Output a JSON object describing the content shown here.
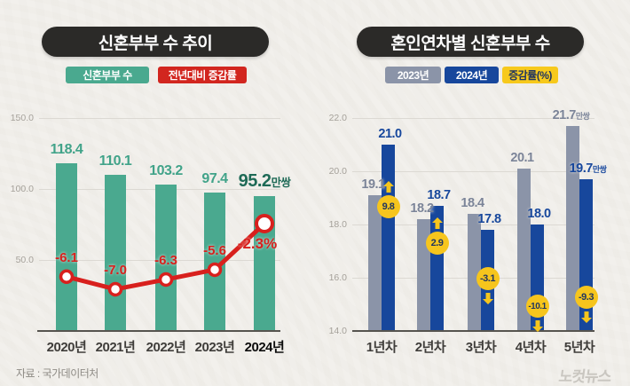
{
  "left_panel": {
    "title": "신혼부부 수 추이",
    "legend": [
      {
        "label": "신혼부부 수",
        "color": "#4aa98f"
      },
      {
        "label": "전년대비 증감률",
        "color": "#d2261f"
      }
    ]
  },
  "right_panel": {
    "title": "혼인연차별 신혼부부 수",
    "legend": [
      {
        "label": "2023년",
        "color": "#8b94a8",
        "text_color": "#ffffff"
      },
      {
        "label": "2024년",
        "color": "#17479c",
        "text_color": "#ffffff"
      },
      {
        "label": "증감률(%)",
        "color": "#f7c91c",
        "text_color": "#21355f"
      }
    ]
  },
  "chart_data": [
    {
      "type": "bar",
      "title": "신혼부부 수 추이",
      "categories": [
        "2020년",
        "2021년",
        "2022년",
        "2023년",
        "2024년"
      ],
      "yticks": [
        150,
        100,
        50
      ],
      "ytick_labels": [
        "150.0",
        "100.0",
        "50.0"
      ],
      "ylim": [
        0,
        158
      ],
      "grid": true,
      "unit_suffix": "만쌍",
      "series": [
        {
          "name": "신혼부부 수",
          "type": "bar",
          "color": "#4aa98f",
          "values": [
            118.4,
            110.1,
            103.2,
            97.4,
            95.2
          ],
          "labels": [
            "118.4",
            "110.1",
            "103.2",
            "97.4",
            "95.2"
          ],
          "label_color": "#41a389",
          "final_label_color": "#1e6a56"
        },
        {
          "name": "전년대비 증감률",
          "type": "line",
          "color": "#d8201d",
          "values": [
            -6.1,
            -7.0,
            -6.3,
            -5.6,
            -2.3
          ],
          "labels": [
            "-6.1",
            "-7.0",
            "-6.3",
            "-5.6",
            "-2.3%"
          ],
          "unit": "%"
        }
      ]
    },
    {
      "type": "bar",
      "title": "혼인연차별 신혼부부 수",
      "categories": [
        "1년차",
        "2년차",
        "3년차",
        "4년차",
        "5년차"
      ],
      "yticks": [
        22,
        20,
        18,
        16,
        14
      ],
      "ytick_labels": [
        "22.0",
        "20.0",
        "18.0",
        "16.0",
        "14.0"
      ],
      "ylim": [
        14,
        22.5
      ],
      "grid": true,
      "unit_suffix": "만쌍",
      "series": [
        {
          "name": "2023년",
          "type": "bar",
          "color": "#8b94a8",
          "values": [
            19.1,
            18.2,
            18.4,
            20.1,
            21.7
          ],
          "labels": [
            "19.1",
            "18.2",
            "18.4",
            "20.1",
            "21.7"
          ],
          "label_color": "#7b8498"
        },
        {
          "name": "2024년",
          "type": "bar",
          "color": "#17479c",
          "values": [
            21.0,
            18.7,
            17.8,
            18.0,
            19.7
          ],
          "labels": [
            "21.0",
            "18.7",
            "17.8",
            "18.0",
            "19.7"
          ],
          "label_color": "#17479c"
        },
        {
          "name": "증감률(%)",
          "type": "change-bubble",
          "color": "#f6c51d",
          "values": [
            9.8,
            2.9,
            -3.1,
            -10.1,
            -9.3
          ],
          "labels": [
            "9.8",
            "2.9",
            "-3.1",
            "-10.1",
            "-9.3"
          ],
          "directions": [
            "up",
            "up",
            "down",
            "down",
            "down"
          ],
          "text_color": "#21355f"
        }
      ]
    }
  ],
  "footer": {
    "source": "자료 : 국가데이터처",
    "logo": "노컷뉴스"
  }
}
